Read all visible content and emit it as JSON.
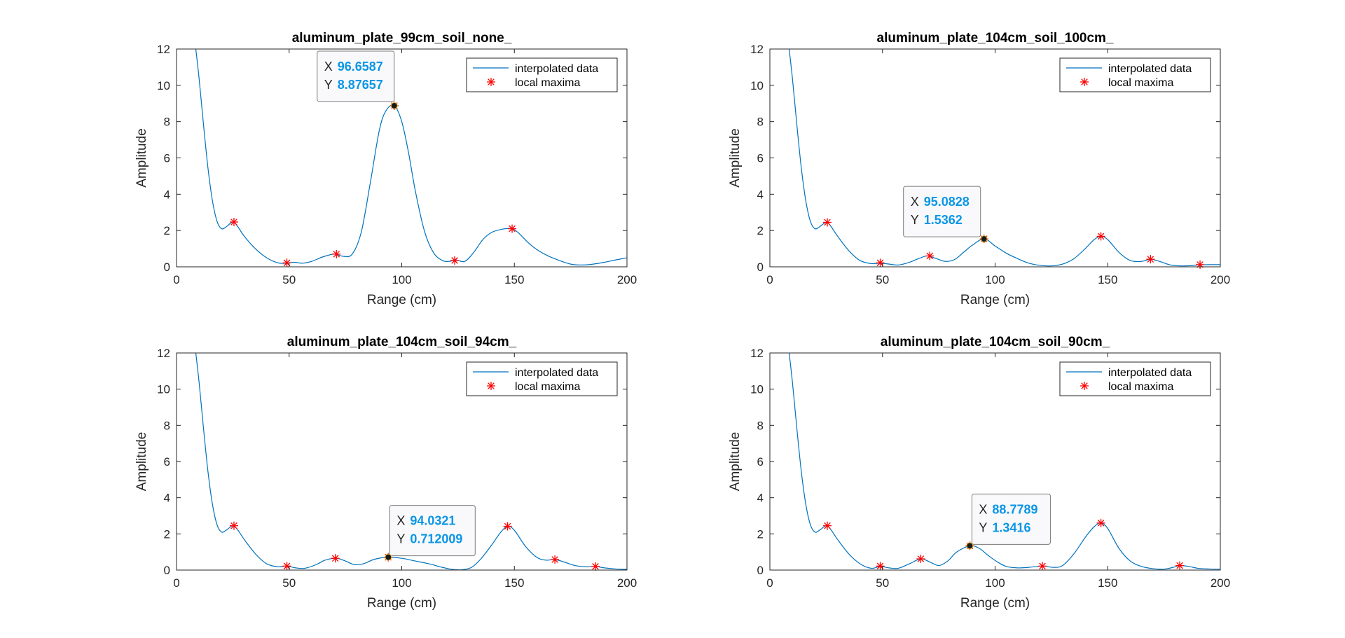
{
  "colors": {
    "curve": "#0072BD",
    "maxima": "#ff0000",
    "axis": "#262626",
    "datatip_value": "#0a96e6"
  },
  "chart_data": [
    {
      "type": "line",
      "title": "aluminum_plate_99cm_soil_none_",
      "xlabel": "Range (cm)",
      "ylabel": "Amplitude",
      "xlim": [
        0,
        200
      ],
      "ylim": [
        0,
        12
      ],
      "xticks": [
        0,
        50,
        100,
        150,
        200
      ],
      "yticks": [
        0,
        2,
        4,
        6,
        8,
        10,
        12
      ],
      "legend": {
        "position": "top-right",
        "entries": [
          "interpolated data",
          "local maxima"
        ]
      },
      "series": [
        {
          "name": "interpolated data",
          "x": [
            8,
            10,
            12,
            14,
            16,
            18,
            20,
            22,
            25,
            27,
            30,
            35,
            40,
            45,
            49,
            52,
            56,
            60,
            65,
            70,
            74,
            78,
            82,
            86,
            90,
            93,
            96.7,
            100,
            103,
            106,
            110,
            114,
            118,
            121,
            124,
            128,
            132,
            136,
            140,
            145,
            149,
            152,
            156,
            160,
            165,
            170,
            175,
            180,
            185,
            190,
            195,
            200
          ],
          "y": [
            12.6,
            10.4,
            7.8,
            5.4,
            3.6,
            2.5,
            2.1,
            2.2,
            2.47,
            2.25,
            1.7,
            1.0,
            0.5,
            0.22,
            0.2,
            0.25,
            0.2,
            0.3,
            0.55,
            0.7,
            0.58,
            0.7,
            1.9,
            4.6,
            7.5,
            8.6,
            8.88,
            8.0,
            6.3,
            4.2,
            2.0,
            0.8,
            0.35,
            0.3,
            0.38,
            0.3,
            0.8,
            1.5,
            1.9,
            2.08,
            2.1,
            1.85,
            1.35,
            0.95,
            0.6,
            0.35,
            0.15,
            0.1,
            0.15,
            0.25,
            0.38,
            0.5
          ]
        },
        {
          "name": "local maxima",
          "x": [
            25.5,
            49,
            71,
            96.7,
            123.5,
            149
          ],
          "y": [
            2.47,
            0.22,
            0.7,
            8.88,
            0.35,
            2.1
          ]
        }
      ],
      "datatip": {
        "x_label": "X",
        "y_label": "Y",
        "x": 96.6587,
        "y": 8.87657,
        "x_text": "96.6587",
        "y_text": "8.87657"
      }
    },
    {
      "type": "line",
      "title": "aluminum_plate_104cm_soil_100cm_",
      "xlabel": "Range (cm)",
      "ylabel": "Amplitude",
      "xlim": [
        0,
        200
      ],
      "ylim": [
        0,
        12
      ],
      "xticks": [
        0,
        50,
        100,
        150,
        200
      ],
      "yticks": [
        0,
        2,
        4,
        6,
        8,
        10,
        12
      ],
      "legend": {
        "position": "top-right",
        "entries": [
          "interpolated data",
          "local maxima"
        ]
      },
      "series": [
        {
          "name": "interpolated data",
          "x": [
            8,
            10,
            12,
            14,
            16,
            18,
            20,
            22,
            25,
            27,
            30,
            35,
            40,
            45,
            49,
            53,
            57,
            62,
            66,
            70,
            74,
            78,
            82,
            86,
            90,
            95.1,
            100,
            105,
            110,
            115,
            120,
            125,
            130,
            135,
            140,
            144,
            147,
            150,
            155,
            160,
            165,
            169,
            173,
            178,
            184,
            190,
            195,
            200
          ],
          "y": [
            12.6,
            10.4,
            7.8,
            5.4,
            3.6,
            2.5,
            2.1,
            2.2,
            2.45,
            2.25,
            1.7,
            0.9,
            0.35,
            0.18,
            0.2,
            0.15,
            0.1,
            0.25,
            0.45,
            0.6,
            0.45,
            0.3,
            0.4,
            0.8,
            1.2,
            1.54,
            1.15,
            0.75,
            0.45,
            0.2,
            0.08,
            0.05,
            0.15,
            0.45,
            1.0,
            1.5,
            1.68,
            1.5,
            0.8,
            0.35,
            0.3,
            0.42,
            0.3,
            0.1,
            0.05,
            0.1,
            0.12,
            0.12
          ]
        },
        {
          "name": "local maxima",
          "x": [
            25.5,
            49,
            71,
            95.1,
            147,
            169,
            191
          ],
          "y": [
            2.45,
            0.22,
            0.6,
            1.54,
            1.68,
            0.42,
            0.12
          ]
        }
      ],
      "datatip": {
        "x_label": "X",
        "y_label": "Y",
        "x": 95.0828,
        "y": 1.5362,
        "x_text": "95.0828",
        "y_text": "1.5362"
      }
    },
    {
      "type": "line",
      "title": "aluminum_plate_104cm_soil_94cm_",
      "xlabel": "Range (cm)",
      "ylabel": "Amplitude",
      "xlim": [
        0,
        200
      ],
      "ylim": [
        0,
        12
      ],
      "xticks": [
        0,
        50,
        100,
        150,
        200
      ],
      "yticks": [
        0,
        2,
        4,
        6,
        8,
        10,
        12
      ],
      "legend": {
        "position": "top-right",
        "entries": [
          "interpolated data",
          "local maxima"
        ]
      },
      "series": [
        {
          "name": "interpolated data",
          "x": [
            8,
            10,
            12,
            14,
            16,
            18,
            20,
            22,
            25,
            27,
            30,
            35,
            40,
            45,
            49,
            53,
            57,
            62,
            66,
            71,
            75,
            79,
            83,
            88,
            94,
            100,
            106,
            112,
            118,
            123,
            127,
            131,
            135,
            140,
            144,
            147,
            150,
            155,
            160,
            164,
            168,
            172,
            177,
            182,
            186,
            190,
            195,
            200
          ],
          "y": [
            12.6,
            10.4,
            7.8,
            5.4,
            3.6,
            2.5,
            2.1,
            2.2,
            2.45,
            2.25,
            1.7,
            0.9,
            0.35,
            0.18,
            0.22,
            0.12,
            0.1,
            0.3,
            0.55,
            0.65,
            0.5,
            0.3,
            0.35,
            0.6,
            0.71,
            0.65,
            0.5,
            0.35,
            0.15,
            0.03,
            0.02,
            0.15,
            0.6,
            1.4,
            2.1,
            2.42,
            2.2,
            1.3,
            0.7,
            0.55,
            0.58,
            0.45,
            0.25,
            0.18,
            0.2,
            0.12,
            0.06,
            0.04
          ]
        },
        {
          "name": "local maxima",
          "x": [
            25.5,
            49,
            70.5,
            94,
            147,
            168,
            186
          ],
          "y": [
            2.45,
            0.22,
            0.65,
            0.71,
            2.42,
            0.58,
            0.2
          ]
        }
      ],
      "datatip": {
        "x_label": "X",
        "y_label": "Y",
        "x": 94.0321,
        "y": 0.712009,
        "x_text": "94.0321",
        "y_text": "0.712009"
      }
    },
    {
      "type": "line",
      "title": "aluminum_plate_104cm_soil_90cm_",
      "xlabel": "Range (cm)",
      "ylabel": "Amplitude",
      "xlim": [
        0,
        200
      ],
      "ylim": [
        0,
        12
      ],
      "xticks": [
        0,
        50,
        100,
        150,
        200
      ],
      "yticks": [
        0,
        2,
        4,
        6,
        8,
        10,
        12
      ],
      "legend": {
        "position": "top-right",
        "entries": [
          "interpolated data",
          "local maxima"
        ]
      },
      "series": [
        {
          "name": "interpolated data",
          "x": [
            8,
            10,
            12,
            14,
            16,
            18,
            20,
            22,
            25,
            27,
            30,
            35,
            40,
            45,
            49,
            53,
            57,
            62,
            67,
            71,
            75,
            79,
            83,
            88.8,
            93,
            97,
            101,
            105,
            110,
            115,
            121,
            126,
            130,
            135,
            140,
            144,
            147,
            150,
            155,
            160,
            165,
            170,
            175,
            179,
            182,
            186,
            190,
            195,
            200
          ],
          "y": [
            12.6,
            10.4,
            7.8,
            5.4,
            3.6,
            2.5,
            2.1,
            2.2,
            2.45,
            2.25,
            1.7,
            0.9,
            0.35,
            0.1,
            0.2,
            0.12,
            0.1,
            0.35,
            0.62,
            0.45,
            0.25,
            0.5,
            1.0,
            1.34,
            1.2,
            0.8,
            0.45,
            0.2,
            0.12,
            0.15,
            0.22,
            0.15,
            0.25,
            0.9,
            1.8,
            2.4,
            2.6,
            2.3,
            1.2,
            0.5,
            0.2,
            0.08,
            0.05,
            0.15,
            0.25,
            0.2,
            0.1,
            0.06,
            0.05
          ]
        },
        {
          "name": "local maxima",
          "x": [
            25.5,
            49,
            67,
            88.8,
            121,
            147,
            182
          ],
          "y": [
            2.45,
            0.22,
            0.62,
            1.34,
            0.22,
            2.6,
            0.25
          ]
        }
      ],
      "datatip": {
        "x_label": "X",
        "y_label": "Y",
        "x": 88.7789,
        "y": 1.3416,
        "x_text": "88.7789",
        "y_text": "1.3416"
      }
    }
  ]
}
